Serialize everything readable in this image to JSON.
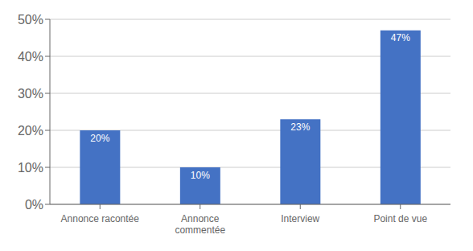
{
  "chart_data": {
    "type": "bar",
    "categories": [
      "Annonce racontée",
      "Annonce\ncommentée",
      "Interview",
      "Point de vue"
    ],
    "values": [
      20,
      10,
      23,
      47
    ],
    "value_labels": [
      "20%",
      "10%",
      "23%",
      "47%"
    ],
    "data_labels": true,
    "color": "#4472C4",
    "ylim": [
      0,
      50
    ],
    "yticks": [
      {
        "value": 0,
        "label": "0%"
      },
      {
        "value": 10,
        "label": "10%"
      },
      {
        "value": 20,
        "label": "20%"
      },
      {
        "value": 30,
        "label": "30%"
      },
      {
        "value": 40,
        "label": "40%"
      },
      {
        "value": 50,
        "label": "50%"
      }
    ],
    "grid": true
  }
}
